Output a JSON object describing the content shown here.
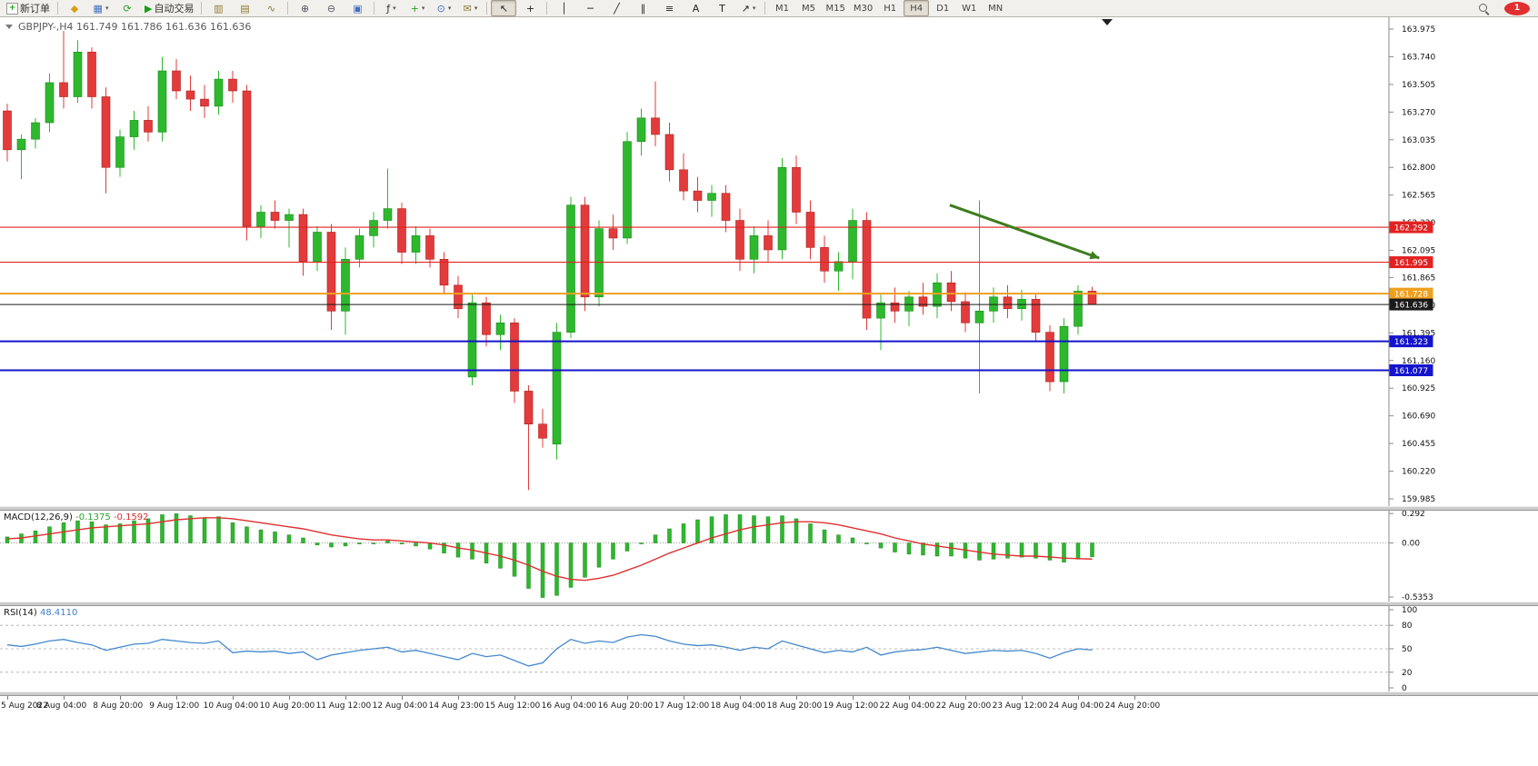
{
  "toolbar": {
    "items": [
      {
        "name": "new-order-button",
        "label": "新订单",
        "glyph": "+",
        "color": "#18a018",
        "cls": "ico-box"
      },
      {
        "type": "sep"
      },
      {
        "name": "mql5-wizard-button",
        "glyph": "◆",
        "color": "#d8a018"
      },
      {
        "name": "new-chart-button",
        "glyph": "▦",
        "color": "#4070c0",
        "caret": true
      },
      {
        "name": "profiles-button",
        "glyph": "⟳",
        "color": "#28a028"
      },
      {
        "name": "auto-trading-button",
        "label": "自动交易",
        "glyph": "▶",
        "color": "#18a018"
      },
      {
        "type": "sep"
      },
      {
        "name": "bar-chart-button",
        "glyph": "▥",
        "color": "#8a7a30"
      },
      {
        "name": "candlestick-chart-button",
        "glyph": "▤",
        "color": "#8a7a30"
      },
      {
        "name": "line-chart-button",
        "glyph": "∿",
        "color": "#8a7a30"
      },
      {
        "type": "sep"
      },
      {
        "name": "zoom-in-button",
        "glyph": "⊕",
        "color": "#555566"
      },
      {
        "name": "zoom-out-button",
        "glyph": "⊖",
        "color": "#555566"
      },
      {
        "name": "tile-windows-button",
        "glyph": "▣",
        "color": "#4070c0"
      },
      {
        "type": "sep"
      },
      {
        "name": "indicators-button",
        "glyph": "ƒ",
        "color": "#333333",
        "caret": true
      },
      {
        "name": "add-indicator-button",
        "glyph": "+",
        "color": "#28a028",
        "caret": true
      },
      {
        "name": "periods-button",
        "glyph": "⊙",
        "color": "#4070c0",
        "caret": true
      },
      {
        "name": "templates-button",
        "glyph": "✉",
        "color": "#8a7a30",
        "caret": true
      },
      {
        "type": "sep"
      },
      {
        "name": "cursor-button",
        "glyph": "↖",
        "color": "#222222",
        "active": true
      },
      {
        "name": "crosshair-button",
        "glyph": "+",
        "color": "#222222"
      },
      {
        "type": "sep"
      },
      {
        "name": "vertical-line-button",
        "glyph": "│",
        "color": "#222222"
      },
      {
        "name": "horizontal-line-button",
        "glyph": "─",
        "color": "#222222"
      },
      {
        "name": "trendline-button",
        "glyph": "╱",
        "color": "#222222"
      },
      {
        "name": "channel-button",
        "glyph": "∥",
        "color": "#222222"
      },
      {
        "name": "fibonacci-button",
        "glyph": "≡",
        "color": "#222222"
      },
      {
        "name": "text-button",
        "glyph": "A",
        "color": "#222222"
      },
      {
        "name": "text-label-button",
        "glyph": "T",
        "color": "#222222"
      },
      {
        "name": "arrows-button",
        "glyph": "↗",
        "color": "#222222",
        "caret": true
      },
      {
        "type": "sep"
      },
      {
        "name": "timeframe-m1-button",
        "label": "M1",
        "cls": "tf"
      },
      {
        "name": "timeframe-m5-button",
        "label": "M5",
        "cls": "tf"
      },
      {
        "name": "timeframe-m15-button",
        "label": "M15",
        "cls": "tf"
      },
      {
        "name": "timeframe-m30-button",
        "label": "M30",
        "cls": "tf"
      },
      {
        "name": "timeframe-h1-button",
        "label": "H1",
        "cls": "tf"
      },
      {
        "name": "timeframe-h4-button",
        "label": "H4",
        "cls": "tf",
        "active": true
      },
      {
        "name": "timeframe-d1-button",
        "label": "D1",
        "cls": "tf"
      },
      {
        "name": "timeframe-w1-button",
        "label": "W1",
        "cls": "tf"
      },
      {
        "name": "timeframe-mn-button",
        "label": "MN",
        "cls": "tf"
      },
      {
        "type": "spacer"
      },
      {
        "name": "search-button",
        "cls": "search-ico"
      },
      {
        "name": "notification-badge",
        "label": "1",
        "cls": "badge"
      }
    ]
  },
  "chart_data": {
    "type": "candlestick",
    "symbol": "GBPJPY-",
    "timeframe": "H4",
    "title": "GBPJPY-,H4 161.749 161.786 161.636 161.636",
    "ohlc_display": {
      "open": "161.749",
      "high": "161.786",
      "low": "161.636",
      "close": "161.636"
    },
    "colors": {
      "bull": "#2eb82e",
      "bear": "#e33b3b",
      "bull_border": "#188a18",
      "bear_border": "#a81f1f"
    },
    "price_axis": {
      "max": 163.975,
      "min": 159.985,
      "ticks": [
        "163.975",
        "163.740",
        "163.505",
        "163.270",
        "163.035",
        "162.800",
        "162.565",
        "162.330",
        "162.095",
        "161.865",
        "161.630",
        "161.395",
        "161.160",
        "160.925",
        "160.690",
        "160.455",
        "160.220",
        "159.985"
      ]
    },
    "price_levels": [
      {
        "name": "resistance-line-1",
        "value": 162.292,
        "label": "162.292",
        "color": "#e22222",
        "width": 1.2
      },
      {
        "name": "resistance-line-2",
        "value": 161.995,
        "label": "161.995",
        "color": "#e22222",
        "width": 1.2
      },
      {
        "name": "pivot-line",
        "value": 161.728,
        "label": "161.728",
        "color": "#eea020",
        "width": 2
      },
      {
        "name": "current-price-line",
        "value": 161.636,
        "label": "161.636",
        "color": "#1a1a1a",
        "width": 1
      },
      {
        "name": "support-line-1",
        "value": 161.323,
        "label": "161.323",
        "color": "#1414cc",
        "width": 2
      },
      {
        "name": "support-line-2",
        "value": 161.077,
        "label": "161.077",
        "color": "#1414cc",
        "width": 2
      }
    ],
    "arrow_annotation": {
      "from": [
        66.9,
        162.48
      ],
      "to": [
        77.5,
        162.03
      ],
      "color": "#3e7d1e"
    },
    "candles": [
      [
        163.28,
        163.34,
        162.85,
        162.95
      ],
      [
        162.95,
        163.08,
        162.7,
        163.04
      ],
      [
        163.04,
        163.22,
        162.96,
        163.18
      ],
      [
        163.18,
        163.6,
        163.1,
        163.52
      ],
      [
        163.52,
        163.96,
        163.3,
        163.4
      ],
      [
        163.4,
        163.88,
        163.35,
        163.78
      ],
      [
        163.78,
        163.82,
        163.3,
        163.4
      ],
      [
        163.4,
        163.48,
        162.58,
        162.8
      ],
      [
        162.8,
        163.12,
        162.72,
        163.06
      ],
      [
        163.06,
        163.28,
        162.95,
        163.2
      ],
      [
        163.2,
        163.32,
        163.02,
        163.1
      ],
      [
        163.1,
        163.74,
        163.02,
        163.62
      ],
      [
        163.62,
        163.72,
        163.38,
        163.45
      ],
      [
        163.45,
        163.58,
        163.28,
        163.38
      ],
      [
        163.38,
        163.5,
        163.22,
        163.32
      ],
      [
        163.32,
        163.62,
        163.25,
        163.55
      ],
      [
        163.55,
        163.62,
        163.35,
        163.45
      ],
      [
        163.45,
        163.5,
        162.18,
        162.3
      ],
      [
        162.3,
        162.48,
        162.2,
        162.42
      ],
      [
        162.42,
        162.52,
        162.28,
        162.35
      ],
      [
        162.35,
        162.45,
        162.12,
        162.4
      ],
      [
        162.4,
        162.45,
        161.88,
        162.0
      ],
      [
        162.0,
        162.3,
        161.92,
        162.25
      ],
      [
        162.25,
        162.32,
        161.42,
        161.58
      ],
      [
        161.58,
        162.12,
        161.38,
        162.02
      ],
      [
        162.02,
        162.28,
        161.95,
        162.22
      ],
      [
        162.22,
        162.42,
        162.12,
        162.35
      ],
      [
        162.35,
        162.79,
        162.28,
        162.45
      ],
      [
        162.45,
        162.5,
        161.98,
        162.08
      ],
      [
        162.08,
        162.3,
        161.98,
        162.22
      ],
      [
        162.22,
        162.28,
        161.95,
        162.02
      ],
      [
        162.02,
        162.08,
        161.72,
        161.8
      ],
      [
        161.8,
        161.88,
        161.52,
        161.6
      ],
      [
        161.02,
        161.72,
        160.95,
        161.65
      ],
      [
        161.65,
        161.7,
        161.28,
        161.38
      ],
      [
        161.38,
        161.55,
        161.25,
        161.48
      ],
      [
        161.48,
        161.52,
        160.8,
        160.9
      ],
      [
        160.9,
        160.95,
        160.06,
        160.62
      ],
      [
        160.62,
        160.75,
        160.42,
        160.5
      ],
      [
        160.45,
        161.48,
        160.32,
        161.4
      ],
      [
        161.4,
        162.55,
        161.35,
        162.48
      ],
      [
        162.48,
        162.55,
        161.58,
        161.7
      ],
      [
        161.7,
        162.35,
        161.62,
        162.28
      ],
      [
        162.28,
        162.4,
        162.1,
        162.2
      ],
      [
        162.2,
        163.1,
        162.15,
        163.02
      ],
      [
        163.02,
        163.3,
        162.9,
        163.22
      ],
      [
        163.22,
        163.53,
        162.98,
        163.08
      ],
      [
        163.08,
        163.18,
        162.68,
        162.78
      ],
      [
        162.78,
        162.92,
        162.52,
        162.6
      ],
      [
        162.6,
        162.72,
        162.42,
        162.52
      ],
      [
        162.52,
        162.65,
        162.38,
        162.58
      ],
      [
        162.58,
        162.65,
        162.25,
        162.35
      ],
      [
        162.35,
        162.45,
        161.92,
        162.02
      ],
      [
        162.02,
        162.3,
        161.9,
        162.22
      ],
      [
        162.22,
        162.35,
        162.0,
        162.1
      ],
      [
        162.1,
        162.88,
        162.02,
        162.8
      ],
      [
        162.8,
        162.9,
        162.32,
        162.42
      ],
      [
        162.42,
        162.52,
        162.02,
        162.12
      ],
      [
        162.12,
        162.22,
        161.82,
        161.92
      ],
      [
        161.92,
        162.08,
        161.75,
        162.0
      ],
      [
        162.0,
        162.45,
        161.85,
        162.35
      ],
      [
        162.35,
        162.42,
        161.42,
        161.52
      ],
      [
        161.52,
        161.72,
        161.25,
        161.65
      ],
      [
        161.65,
        161.78,
        161.48,
        161.58
      ],
      [
        161.58,
        161.75,
        161.45,
        161.7
      ],
      [
        161.7,
        161.82,
        161.55,
        161.62
      ],
      [
        161.62,
        161.9,
        161.52,
        161.82
      ],
      [
        161.82,
        161.92,
        161.58,
        161.66
      ],
      [
        161.66,
        161.74,
        161.4,
        161.48
      ],
      [
        161.48,
        162.52,
        160.88,
        161.58
      ],
      [
        161.58,
        161.78,
        161.48,
        161.7
      ],
      [
        161.7,
        161.8,
        161.52,
        161.6
      ],
      [
        161.6,
        161.76,
        161.5,
        161.68
      ],
      [
        161.68,
        161.72,
        161.32,
        161.4
      ],
      [
        161.4,
        161.46,
        160.9,
        160.98
      ],
      [
        160.98,
        161.52,
        160.88,
        161.45
      ],
      [
        161.45,
        161.8,
        161.38,
        161.749
      ],
      [
        161.749,
        161.786,
        161.636,
        161.636
      ]
    ],
    "time_axis": {
      "labels": [
        {
          "i": 0,
          "t": "5 Aug 2022"
        },
        {
          "i": 4,
          "t": "8 Aug 04:00"
        },
        {
          "i": 8,
          "t": "8 Aug 20:00"
        },
        {
          "i": 12,
          "t": "9 Aug 12:00"
        },
        {
          "i": 16,
          "t": "10 Aug 04:00"
        },
        {
          "i": 20,
          "t": "10 Aug 20:00"
        },
        {
          "i": 24,
          "t": "11 Aug 12:00"
        },
        {
          "i": 28,
          "t": "12 Aug 04:00"
        },
        {
          "i": 32,
          "t": "14 Aug 23:00"
        },
        {
          "i": 36,
          "t": "15 Aug 12:00"
        },
        {
          "i": 40,
          "t": "16 Aug 04:00"
        },
        {
          "i": 44,
          "t": "16 Aug 20:00"
        },
        {
          "i": 48,
          "t": "17 Aug 12:00"
        },
        {
          "i": 52,
          "t": "18 Aug 04:00"
        },
        {
          "i": 56,
          "t": "18 Aug 20:00"
        },
        {
          "i": 60,
          "t": "19 Aug 12:00"
        },
        {
          "i": 64,
          "t": "22 Aug 04:00"
        },
        {
          "i": 68,
          "t": "22 Aug 20:00"
        },
        {
          "i": 72,
          "t": "23 Aug 12:00"
        },
        {
          "i": 76,
          "t": "24 Aug 04:00"
        },
        {
          "i": 80,
          "t": "24 Aug 20:00"
        }
      ]
    },
    "macd": {
      "name": "MACD(12,26,9)",
      "value_main": "-0.1375",
      "value_signal": "-0.1592",
      "axis_labels": [
        "0.292",
        "0.00",
        "-0.5353"
      ],
      "range": [
        -0.58,
        0.32
      ],
      "histogram": [
        0.06,
        0.09,
        0.12,
        0.16,
        0.2,
        0.22,
        0.21,
        0.18,
        0.19,
        0.22,
        0.24,
        0.28,
        0.29,
        0.27,
        0.25,
        0.26,
        0.2,
        0.16,
        0.13,
        0.11,
        0.08,
        0.05,
        -0.02,
        -0.04,
        -0.03,
        -0.01,
        0.0,
        0.02,
        -0.01,
        -0.03,
        -0.06,
        -0.1,
        -0.14,
        -0.16,
        -0.2,
        -0.25,
        -0.33,
        -0.45,
        -0.54,
        -0.52,
        -0.44,
        -0.34,
        -0.24,
        -0.16,
        -0.08,
        0.0,
        0.08,
        0.14,
        0.19,
        0.23,
        0.26,
        0.28,
        0.28,
        0.27,
        0.26,
        0.27,
        0.24,
        0.19,
        0.13,
        0.08,
        0.05,
        0.0,
        -0.05,
        -0.09,
        -0.11,
        -0.12,
        -0.13,
        -0.13,
        -0.15,
        -0.17,
        -0.16,
        -0.15,
        -0.14,
        -0.15,
        -0.17,
        -0.19,
        -0.16,
        -0.1375
      ],
      "signal": [
        0.04,
        0.05,
        0.07,
        0.09,
        0.11,
        0.13,
        0.15,
        0.16,
        0.17,
        0.18,
        0.19,
        0.21,
        0.23,
        0.24,
        0.25,
        0.25,
        0.24,
        0.22,
        0.2,
        0.18,
        0.16,
        0.14,
        0.11,
        0.08,
        0.06,
        0.04,
        0.03,
        0.03,
        0.02,
        0.01,
        0.0,
        -0.02,
        -0.05,
        -0.07,
        -0.1,
        -0.13,
        -0.17,
        -0.22,
        -0.28,
        -0.33,
        -0.36,
        -0.37,
        -0.35,
        -0.32,
        -0.27,
        -0.22,
        -0.16,
        -0.1,
        -0.05,
        0.0,
        0.05,
        0.09,
        0.13,
        0.16,
        0.18,
        0.2,
        0.21,
        0.21,
        0.2,
        0.18,
        0.15,
        0.12,
        0.09,
        0.05,
        0.02,
        -0.01,
        -0.03,
        -0.05,
        -0.07,
        -0.09,
        -0.11,
        -0.12,
        -0.13,
        -0.13,
        -0.14,
        -0.15,
        -0.155,
        -0.1592
      ]
    },
    "rsi": {
      "name": "RSI(14)",
      "value_label": "48.4110",
      "axis_labels": [
        "100",
        "80",
        "50",
        "20",
        "0"
      ],
      "levels": [
        80,
        50,
        20
      ],
      "range": [
        0,
        100
      ],
      "values": [
        55,
        53,
        56,
        60,
        62,
        58,
        55,
        48,
        52,
        56,
        57,
        62,
        60,
        58,
        57,
        60,
        45,
        47,
        46,
        47,
        44,
        46,
        36,
        42,
        45,
        48,
        50,
        52,
        46,
        48,
        44,
        40,
        36,
        44,
        40,
        42,
        35,
        28,
        32,
        50,
        62,
        57,
        60,
        58,
        65,
        68,
        66,
        60,
        56,
        54,
        55,
        52,
        48,
        52,
        50,
        60,
        55,
        50,
        45,
        48,
        46,
        52,
        42,
        46,
        48,
        49,
        52,
        48,
        44,
        46,
        48,
        47,
        48,
        44,
        38,
        45,
        50,
        48.41
      ]
    }
  }
}
